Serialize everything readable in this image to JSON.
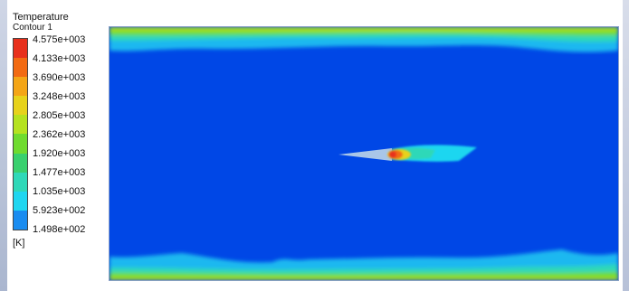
{
  "legend": {
    "title": "Temperature",
    "subtitle": "Contour 1",
    "unit": "[K]",
    "levels": [
      "4.575e+003",
      "4.133e+003",
      "3.690e+003",
      "3.248e+003",
      "2.805e+003",
      "2.362e+003",
      "1.920e+003",
      "1.477e+003",
      "1.035e+003",
      "5.923e+002",
      "1.498e+002"
    ],
    "colors": [
      "#e8301c",
      "#f26a12",
      "#f4a516",
      "#e7d21b",
      "#b5e21f",
      "#6fdb2f",
      "#39d06e",
      "#2fd8b8",
      "#1fd6f0",
      "#1a8cf0",
      "#1048e8"
    ]
  },
  "contour": {
    "background_color": "#0047e6"
  }
}
